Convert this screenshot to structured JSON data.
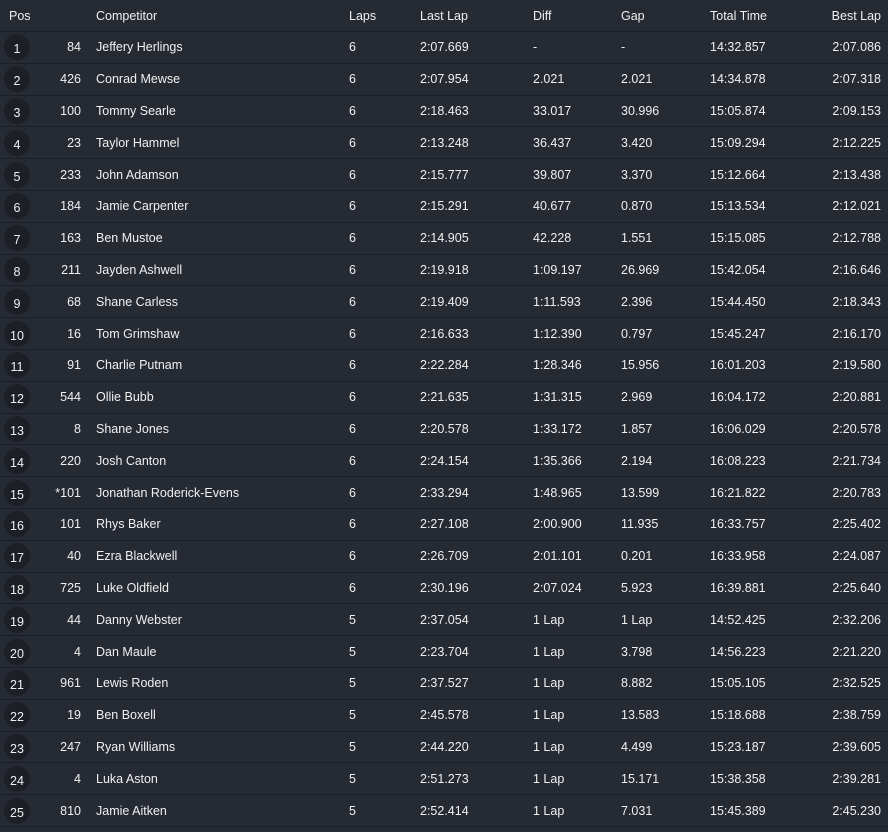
{
  "colors": {
    "background": "#262a33",
    "badge": "#1c1f26",
    "divider": "#1b1e24",
    "text": "#f0f0f0"
  },
  "headers": {
    "pos": "Pos",
    "number": "",
    "competitor": "Competitor",
    "laps": "Laps",
    "last_lap": "Last Lap",
    "diff": "Diff",
    "gap": "Gap",
    "total_time": "Total Time",
    "best_lap": "Best Lap"
  },
  "rows": [
    {
      "pos": "1",
      "number": "84",
      "competitor": "Jeffery Herlings",
      "laps": "6",
      "last_lap": "2:07.669",
      "diff": "-",
      "gap": "-",
      "total_time": "14:32.857",
      "best_lap": "2:07.086"
    },
    {
      "pos": "2",
      "number": "426",
      "competitor": "Conrad Mewse",
      "laps": "6",
      "last_lap": "2:07.954",
      "diff": "2.021",
      "gap": "2.021",
      "total_time": "14:34.878",
      "best_lap": "2:07.318"
    },
    {
      "pos": "3",
      "number": "100",
      "competitor": "Tommy Searle",
      "laps": "6",
      "last_lap": "2:18.463",
      "diff": "33.017",
      "gap": "30.996",
      "total_time": "15:05.874",
      "best_lap": "2:09.153"
    },
    {
      "pos": "4",
      "number": "23",
      "competitor": "Taylor Hammel",
      "laps": "6",
      "last_lap": "2:13.248",
      "diff": "36.437",
      "gap": "3.420",
      "total_time": "15:09.294",
      "best_lap": "2:12.225"
    },
    {
      "pos": "5",
      "number": "233",
      "competitor": "John Adamson",
      "laps": "6",
      "last_lap": "2:15.777",
      "diff": "39.807",
      "gap": "3.370",
      "total_time": "15:12.664",
      "best_lap": "2:13.438"
    },
    {
      "pos": "6",
      "number": "184",
      "competitor": "Jamie Carpenter",
      "laps": "6",
      "last_lap": "2:15.291",
      "diff": "40.677",
      "gap": "0.870",
      "total_time": "15:13.534",
      "best_lap": "2:12.021"
    },
    {
      "pos": "7",
      "number": "163",
      "competitor": "Ben Mustoe",
      "laps": "6",
      "last_lap": "2:14.905",
      "diff": "42.228",
      "gap": "1.551",
      "total_time": "15:15.085",
      "best_lap": "2:12.788"
    },
    {
      "pos": "8",
      "number": "211",
      "competitor": "Jayden Ashwell",
      "laps": "6",
      "last_lap": "2:19.918",
      "diff": "1:09.197",
      "gap": "26.969",
      "total_time": "15:42.054",
      "best_lap": "2:16.646"
    },
    {
      "pos": "9",
      "number": "68",
      "competitor": "Shane Carless",
      "laps": "6",
      "last_lap": "2:19.409",
      "diff": "1:11.593",
      "gap": "2.396",
      "total_time": "15:44.450",
      "best_lap": "2:18.343"
    },
    {
      "pos": "10",
      "number": "16",
      "competitor": "Tom Grimshaw",
      "laps": "6",
      "last_lap": "2:16.633",
      "diff": "1:12.390",
      "gap": "0.797",
      "total_time": "15:45.247",
      "best_lap": "2:16.170"
    },
    {
      "pos": "11",
      "number": "91",
      "competitor": "Charlie Putnam",
      "laps": "6",
      "last_lap": "2:22.284",
      "diff": "1:28.346",
      "gap": "15.956",
      "total_time": "16:01.203",
      "best_lap": "2:19.580"
    },
    {
      "pos": "12",
      "number": "544",
      "competitor": "Ollie Bubb",
      "laps": "6",
      "last_lap": "2:21.635",
      "diff": "1:31.315",
      "gap": "2.969",
      "total_time": "16:04.172",
      "best_lap": "2:20.881"
    },
    {
      "pos": "13",
      "number": "8",
      "competitor": "Shane Jones",
      "laps": "6",
      "last_lap": "2:20.578",
      "diff": "1:33.172",
      "gap": "1.857",
      "total_time": "16:06.029",
      "best_lap": "2:20.578"
    },
    {
      "pos": "14",
      "number": "220",
      "competitor": "Josh Canton",
      "laps": "6",
      "last_lap": "2:24.154",
      "diff": "1:35.366",
      "gap": "2.194",
      "total_time": "16:08.223",
      "best_lap": "2:21.734"
    },
    {
      "pos": "15",
      "number": "*101",
      "competitor": "Jonathan Roderick-Evens",
      "laps": "6",
      "last_lap": "2:33.294",
      "diff": "1:48.965",
      "gap": "13.599",
      "total_time": "16:21.822",
      "best_lap": "2:20.783"
    },
    {
      "pos": "16",
      "number": "101",
      "competitor": "Rhys Baker",
      "laps": "6",
      "last_lap": "2:27.108",
      "diff": "2:00.900",
      "gap": "11.935",
      "total_time": "16:33.757",
      "best_lap": "2:25.402"
    },
    {
      "pos": "17",
      "number": "40",
      "competitor": "Ezra Blackwell",
      "laps": "6",
      "last_lap": "2:26.709",
      "diff": "2:01.101",
      "gap": "0.201",
      "total_time": "16:33.958",
      "best_lap": "2:24.087"
    },
    {
      "pos": "18",
      "number": "725",
      "competitor": "Luke Oldfield",
      "laps": "6",
      "last_lap": "2:30.196",
      "diff": "2:07.024",
      "gap": "5.923",
      "total_time": "16:39.881",
      "best_lap": "2:25.640"
    },
    {
      "pos": "19",
      "number": "44",
      "competitor": "Danny Webster",
      "laps": "5",
      "last_lap": "2:37.054",
      "diff": "1 Lap",
      "gap": "1 Lap",
      "total_time": "14:52.425",
      "best_lap": "2:32.206"
    },
    {
      "pos": "20",
      "number": "4",
      "competitor": "Dan Maule",
      "laps": "5",
      "last_lap": "2:23.704",
      "diff": "1 Lap",
      "gap": "3.798",
      "total_time": "14:56.223",
      "best_lap": "2:21.220"
    },
    {
      "pos": "21",
      "number": "961",
      "competitor": "Lewis Roden",
      "laps": "5",
      "last_lap": "2:37.527",
      "diff": "1 Lap",
      "gap": "8.882",
      "total_time": "15:05.105",
      "best_lap": "2:32.525"
    },
    {
      "pos": "22",
      "number": "19",
      "competitor": "Ben Boxell",
      "laps": "5",
      "last_lap": "2:45.578",
      "diff": "1 Lap",
      "gap": "13.583",
      "total_time": "15:18.688",
      "best_lap": "2:38.759"
    },
    {
      "pos": "23",
      "number": "247",
      "competitor": "Ryan Williams",
      "laps": "5",
      "last_lap": "2:44.220",
      "diff": "1 Lap",
      "gap": "4.499",
      "total_time": "15:23.187",
      "best_lap": "2:39.605"
    },
    {
      "pos": "24",
      "number": "4",
      "competitor": "Luka Aston",
      "laps": "5",
      "last_lap": "2:51.273",
      "diff": "1 Lap",
      "gap": "15.171",
      "total_time": "15:38.358",
      "best_lap": "2:39.281"
    },
    {
      "pos": "25",
      "number": "810",
      "competitor": "Jamie Aitken",
      "laps": "5",
      "last_lap": "2:52.414",
      "diff": "1 Lap",
      "gap": "7.031",
      "total_time": "15:45.389",
      "best_lap": "2:45.230"
    }
  ]
}
